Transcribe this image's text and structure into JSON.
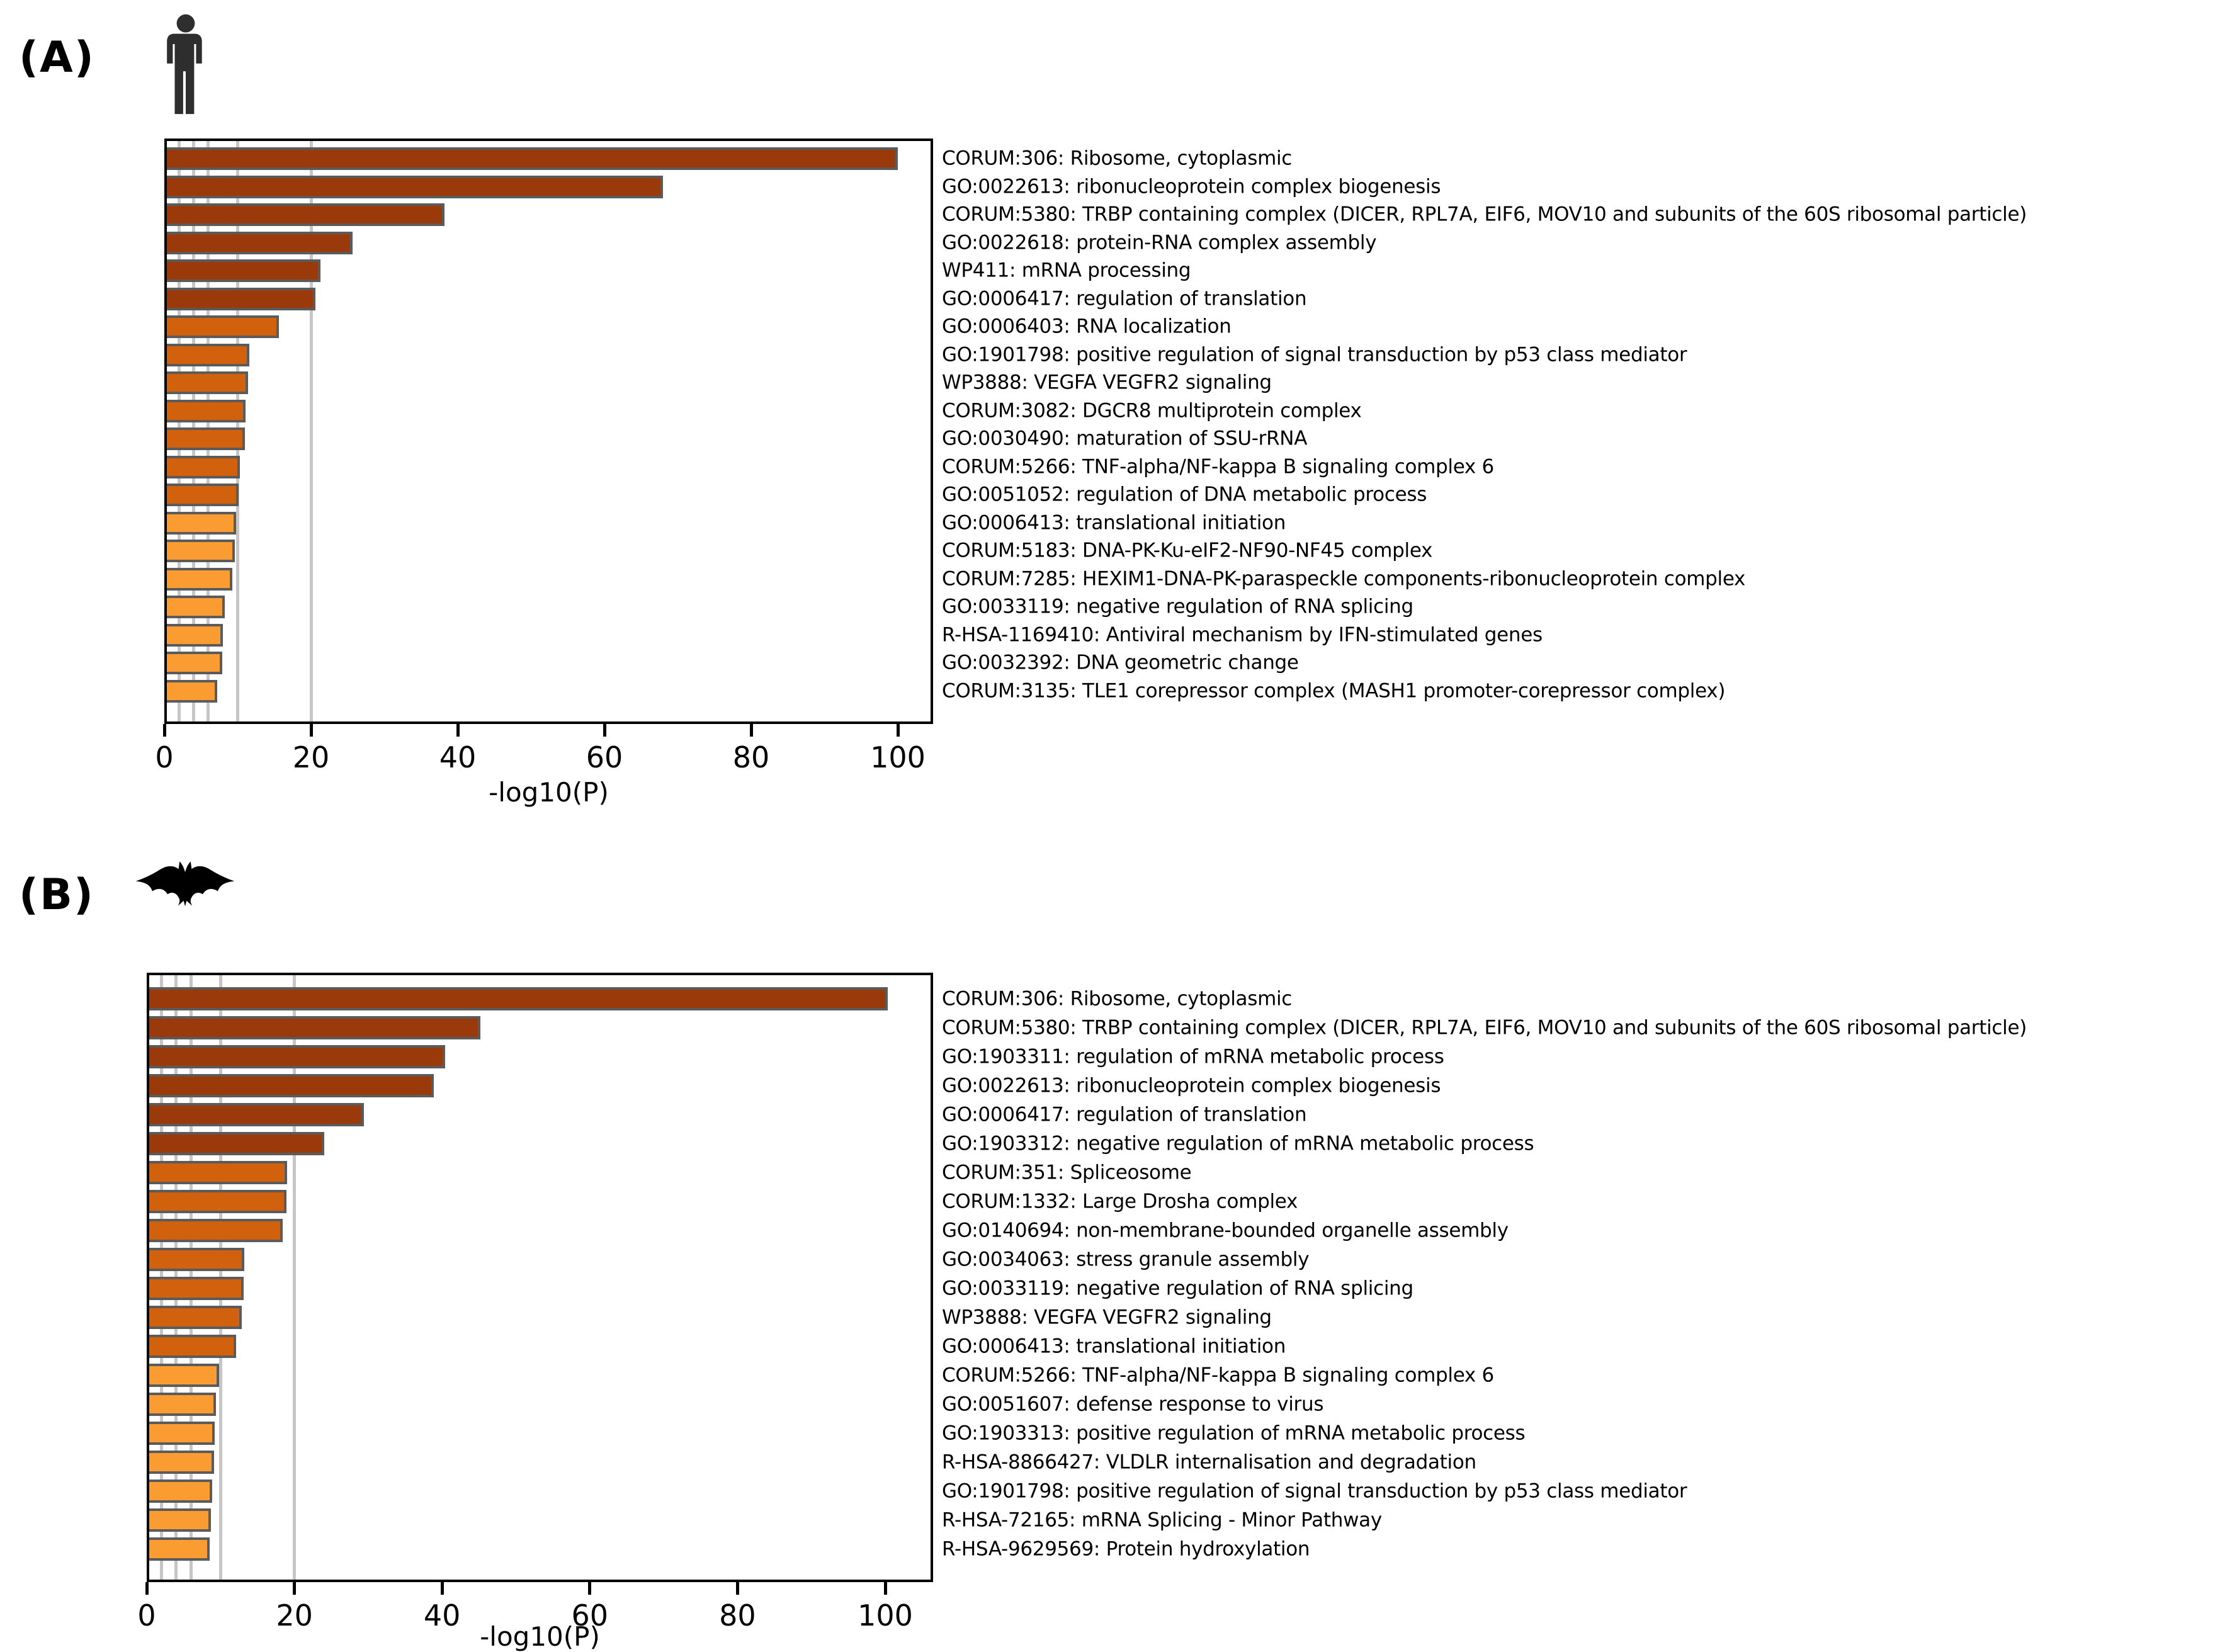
{
  "figure_title": "",
  "colors": {
    "background": "#ffffff",
    "bar_dark": "#9A3A0B",
    "bar_mid": "#D2610D",
    "bar_light": "#FA9C31",
    "bar_border": "#5B5B5B",
    "gridline": "#C6C6C6",
    "axis": "#000000",
    "human_icon": "#2E2E2E",
    "bat_icon": "#000000",
    "color_thresholds": {
      "dark_min": 20,
      "mid_min": 10
    }
  },
  "chart_data": [
    {
      "type": "bar",
      "orientation": "horizontal",
      "panel_letter": "(A)",
      "species_icon": "human-silhouette-icon",
      "title": "",
      "xlabel": "-log10(P)",
      "ylabel": "",
      "xlim": [
        0,
        105
      ],
      "x_ticks": [
        0,
        20,
        40,
        60,
        80,
        100
      ],
      "reference_gridlines": [
        2,
        4,
        6,
        10,
        20
      ],
      "legend_position": "none",
      "bar_color_rule": "value>=20 dark brown, 10-20 mid orange, <10 light orange",
      "categories": [
        "CORUM:306: Ribosome, cytoplasmic",
        "GO:0022613: ribonucleoprotein complex biogenesis",
        "CORUM:5380: TRBP containing complex (DICER, RPL7A, EIF6, MOV10 and subunits of the 60S ribosomal particle)",
        "GO:0022618: protein-RNA complex assembly",
        "WP411: mRNA processing",
        "GO:0006417: regulation of translation",
        "GO:0006403: RNA localization",
        "GO:1901798: positive regulation of signal transduction by p53 class mediator",
        "WP3888: VEGFA VEGFR2 signaling",
        "CORUM:3082: DGCR8 multiprotein complex",
        "GO:0030490: maturation of SSU-rRNA",
        "CORUM:5266: TNF-alpha/NF-kappa B signaling complex 6",
        "GO:0051052: regulation of DNA metabolic process",
        "GO:0006413: translational initiation",
        "CORUM:5183: DNA-PK-Ku-eIF2-NF90-NF45 complex",
        "CORUM:7285: HEXIM1-DNA-PK-paraspeckle components-ribonucleoprotein complex",
        "GO:0033119: negative regulation of RNA splicing",
        "R-HSA-1169410: Antiviral mechanism by IFN-stimulated genes",
        "GO:0032392: DNA geometric change",
        "CORUM:3135: TLE1 corepressor complex (MASH1 promoter-corepressor complex)"
      ],
      "values": [
        100.0,
        68.0,
        38.2,
        25.7,
        21.3,
        20.6,
        15.6,
        11.6,
        11.4,
        11.1,
        11.0,
        10.3,
        10.1,
        9.8,
        9.6,
        9.3,
        8.2,
        8.0,
        7.9,
        7.2
      ]
    },
    {
      "type": "bar",
      "orientation": "horizontal",
      "panel_letter": "(B)",
      "species_icon": "bat-silhouette-icon",
      "title": "",
      "xlabel": "-log10(P)",
      "ylabel": "",
      "xlim": [
        0,
        106
      ],
      "x_ticks": [
        0,
        20,
        40,
        60,
        80,
        100
      ],
      "reference_gridlines": [
        2,
        4,
        6,
        10,
        20
      ],
      "legend_position": "none",
      "bar_color_rule": "value>=20 dark brown, 10-20 mid orange, <10 light orange",
      "categories": [
        "CORUM:306: Ribosome, cytoplasmic",
        "CORUM:5380: TRBP containing complex (DICER, RPL7A, EIF6, MOV10 and subunits of the 60S ribosomal particle)",
        "GO:1903311: regulation of mRNA metabolic process",
        "GO:0022613: ribonucleoprotein complex biogenesis",
        "GO:0006417: regulation of translation",
        "GO:1903312: negative regulation of mRNA metabolic process",
        "CORUM:351: Spliceosome",
        "CORUM:1332: Large Drosha complex",
        "GO:0140694: non-membrane-bounded organelle assembly",
        "GO:0034063: stress granule assembly",
        "GO:0033119: negative regulation of RNA splicing",
        "WP3888: VEGFA VEGFR2 signaling",
        "GO:0006413: translational initiation",
        "CORUM:5266: TNF-alpha/NF-kappa B signaling complex 6",
        "GO:0051607: defense response to virus",
        "GO:1903313: positive regulation of mRNA metabolic process",
        "R-HSA-8866427: VLDLR internalisation and degradation",
        "GO:1901798: positive regulation of signal transduction by p53 class mediator",
        "R-HSA-72165: mRNA Splicing - Minor Pathway",
        "R-HSA-9629569: Protein hydroxylation"
      ],
      "values": [
        100.3,
        45.2,
        40.4,
        38.9,
        29.4,
        24.0,
        19.0,
        18.9,
        18.4,
        13.2,
        13.1,
        12.9,
        12.1,
        9.8,
        9.4,
        9.2,
        9.1,
        8.9,
        8.7,
        8.5
      ]
    }
  ]
}
